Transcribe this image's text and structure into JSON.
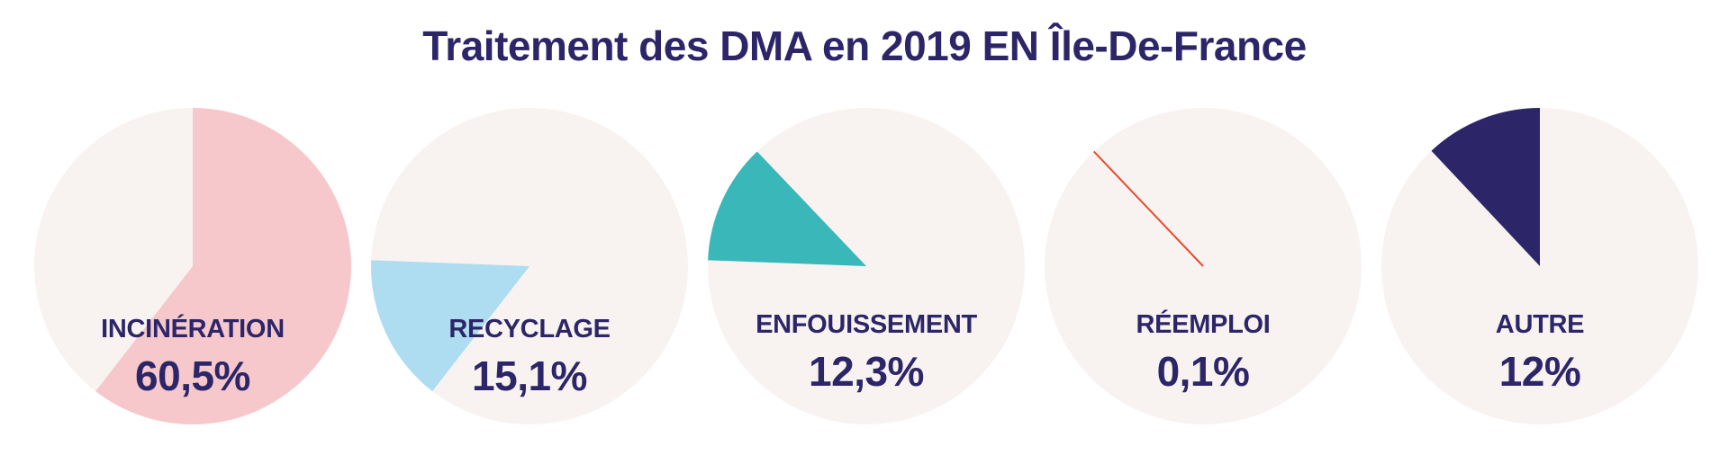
{
  "chart_data": {
    "type": "pie",
    "title": "Traitement des DMA en 2019 EN Île-De-France",
    "background_color": "#f8f3f1",
    "text_color": "#2c2669",
    "categories": [
      "INCINÉRATION",
      "RECYCLAGE",
      "ENFOUISSEMENT",
      "RÉEMPLOI",
      "AUTRE"
    ],
    "values": [
      60.5,
      15.1,
      12.3,
      0.1,
      12
    ],
    "value_labels": [
      "60,5%",
      "15,1%",
      "12,3%",
      "0,1%",
      "12%"
    ],
    "colors": [
      "#f7c8cb",
      "#aedcf0",
      "#3ab7b8",
      "#e84a2f",
      "#2c2669"
    ],
    "offsets": [
      0,
      60.5,
      75.6,
      87.9,
      88
    ]
  }
}
